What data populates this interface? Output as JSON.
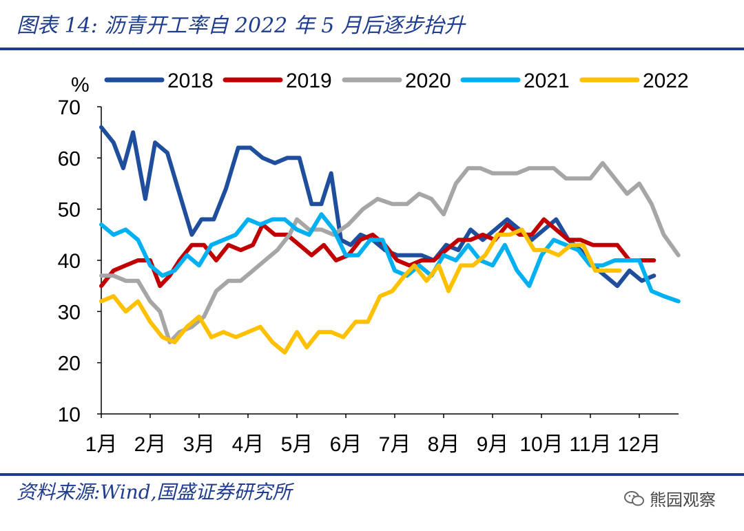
{
  "header": {
    "title": "图表 14:  沥青开工率自 2022 年 5 月后逐步抬升"
  },
  "footer": {
    "source": "资料来源:Wind,国盛证券研究所",
    "watermark": "熊园观察"
  },
  "chart_data": {
    "type": "line",
    "title": "沥青开工率自 2022 年 5 月后逐步抬升",
    "ylabel": "%",
    "xlabel": "",
    "ylim": [
      10,
      70
    ],
    "yticks": [
      "70",
      "60",
      "50",
      "40",
      "30",
      "20",
      "10"
    ],
    "categories": [
      "1月",
      "2月",
      "3月",
      "4月",
      "5月",
      "6月",
      "7月",
      "8月",
      "9月",
      "10月",
      "11月",
      "12月"
    ],
    "x_range": [
      1,
      12.8
    ],
    "legend_position": "top",
    "series": [
      {
        "name": "2018",
        "color": "#1f4e9c",
        "x": [
          1,
          1.25,
          1.45,
          1.65,
          1.9,
          2.1,
          2.35,
          2.6,
          2.85,
          3.05,
          3.3,
          3.55,
          3.8,
          4.05,
          4.3,
          4.55,
          4.8,
          5.05,
          5.3,
          5.5,
          5.7,
          5.9,
          6.1,
          6.3,
          6.55,
          6.8,
          7.05,
          7.3,
          7.55,
          7.8,
          8.05,
          8.3,
          8.55,
          8.8,
          9.05,
          9.3,
          9.55,
          9.8,
          10.05,
          10.3,
          10.55,
          10.8,
          11.05,
          11.3,
          11.55,
          11.8,
          12.05,
          12.3
        ],
        "values": [
          66,
          63,
          58,
          65,
          52,
          63,
          61,
          53,
          45,
          48,
          48,
          54,
          62,
          62,
          60,
          59,
          60,
          60,
          51,
          51,
          57,
          44,
          43,
          45,
          44,
          42,
          41,
          41,
          41,
          40,
          43,
          42,
          46,
          44,
          46,
          48,
          46,
          44,
          46,
          48,
          44,
          42,
          39,
          37,
          35,
          38,
          36,
          37
        ]
      },
      {
        "name": "2019",
        "color": "#c00000",
        "x": [
          1,
          1.25,
          1.5,
          1.75,
          2,
          2.2,
          2.4,
          2.6,
          2.85,
          3.1,
          3.35,
          3.6,
          3.85,
          4.1,
          4.3,
          4.55,
          4.8,
          5.05,
          5.3,
          5.55,
          5.8,
          6.05,
          6.3,
          6.55,
          6.8,
          7.05,
          7.3,
          7.55,
          7.8,
          8.05,
          8.3,
          8.55,
          8.8,
          9.05,
          9.3,
          9.55,
          9.8,
          10.05,
          10.3,
          10.55,
          10.8,
          11.05,
          11.3,
          11.55,
          11.8,
          12.05,
          12.3
        ],
        "values": [
          35,
          38,
          39,
          40,
          40,
          35,
          37,
          40,
          43,
          43,
          40,
          43,
          42,
          43,
          47,
          45,
          45,
          43,
          41,
          43,
          40,
          41,
          44,
          45,
          43,
          40,
          39,
          40,
          40,
          42,
          44,
          44,
          45,
          44,
          47,
          45,
          45,
          48,
          46,
          44,
          44,
          43,
          43,
          43,
          40,
          40,
          40
        ]
      },
      {
        "name": "2020",
        "color": "#a6a6a6",
        "x": [
          1,
          1.25,
          1.5,
          1.75,
          2,
          2.2,
          2.4,
          2.6,
          2.85,
          3.1,
          3.35,
          3.6,
          3.85,
          4.1,
          4.35,
          4.6,
          4.85,
          5,
          5.25,
          5.5,
          5.75,
          6.05,
          6.35,
          6.65,
          6.95,
          7.25,
          7.5,
          7.75,
          8,
          8.25,
          8.5,
          8.75,
          9,
          9.25,
          9.5,
          9.75,
          10,
          10.25,
          10.5,
          10.75,
          11,
          11.25,
          11.5,
          11.75,
          12,
          12.25,
          12.5,
          12.8
        ],
        "values": [
          37,
          37,
          36,
          36,
          32,
          30,
          24,
          26,
          27,
          29,
          34,
          36,
          36,
          38,
          40,
          42,
          45,
          48,
          46,
          46,
          45,
          47,
          50,
          52,
          51,
          51,
          53,
          52,
          49,
          55,
          58,
          58,
          57,
          57,
          57,
          58,
          58,
          58,
          56,
          56,
          56,
          59,
          56,
          53,
          55,
          51,
          45,
          41
        ]
      },
      {
        "name": "2021",
        "color": "#00b0f0",
        "x": [
          1,
          1.25,
          1.5,
          1.75,
          2,
          2.25,
          2.5,
          2.75,
          3,
          3.25,
          3.5,
          3.75,
          4,
          4.25,
          4.5,
          4.75,
          5,
          5.25,
          5.5,
          5.75,
          6,
          6.25,
          6.5,
          6.75,
          7,
          7.25,
          7.5,
          7.75,
          8,
          8.25,
          8.5,
          8.75,
          9,
          9.25,
          9.5,
          9.75,
          10,
          10.25,
          10.5,
          10.75,
          11,
          11.25,
          11.5,
          11.75,
          12,
          12.25,
          12.5,
          12.8
        ],
        "values": [
          47,
          45,
          46,
          44,
          39,
          37,
          38,
          41,
          39,
          43,
          44,
          45,
          48,
          47,
          48,
          48,
          46,
          45,
          49,
          46,
          41,
          41,
          44,
          44,
          38,
          37,
          39,
          37,
          41,
          40,
          43,
          40,
          39,
          43,
          38,
          35,
          41,
          44,
          43,
          42,
          39,
          39,
          40,
          40,
          40,
          34,
          33,
          32
        ]
      },
      {
        "name": "2022",
        "color": "#ffc000",
        "x": [
          1,
          1.25,
          1.5,
          1.75,
          2,
          2.25,
          2.5,
          2.75,
          3,
          3.25,
          3.5,
          3.75,
          4,
          4.25,
          4.5,
          4.75,
          5,
          5.2,
          5.45,
          5.7,
          5.95,
          6.2,
          6.45,
          6.7,
          6.95,
          7.2,
          7.4,
          7.65,
          7.9,
          8.1,
          8.35,
          8.6,
          8.85,
          9.1,
          9.35,
          9.6,
          9.85,
          10.1,
          10.35,
          10.6,
          10.85,
          11.1,
          11.35,
          11.6
        ],
        "values": [
          32,
          33,
          30,
          32,
          28,
          25,
          24,
          27,
          29,
          25,
          26,
          25,
          26,
          27,
          24,
          22,
          26,
          23,
          26,
          26,
          25,
          28,
          28,
          33,
          34,
          37,
          39,
          36,
          39,
          34,
          39,
          39,
          41,
          45,
          45,
          46,
          42,
          42,
          41,
          43,
          43,
          38,
          38,
          38
        ]
      }
    ]
  }
}
